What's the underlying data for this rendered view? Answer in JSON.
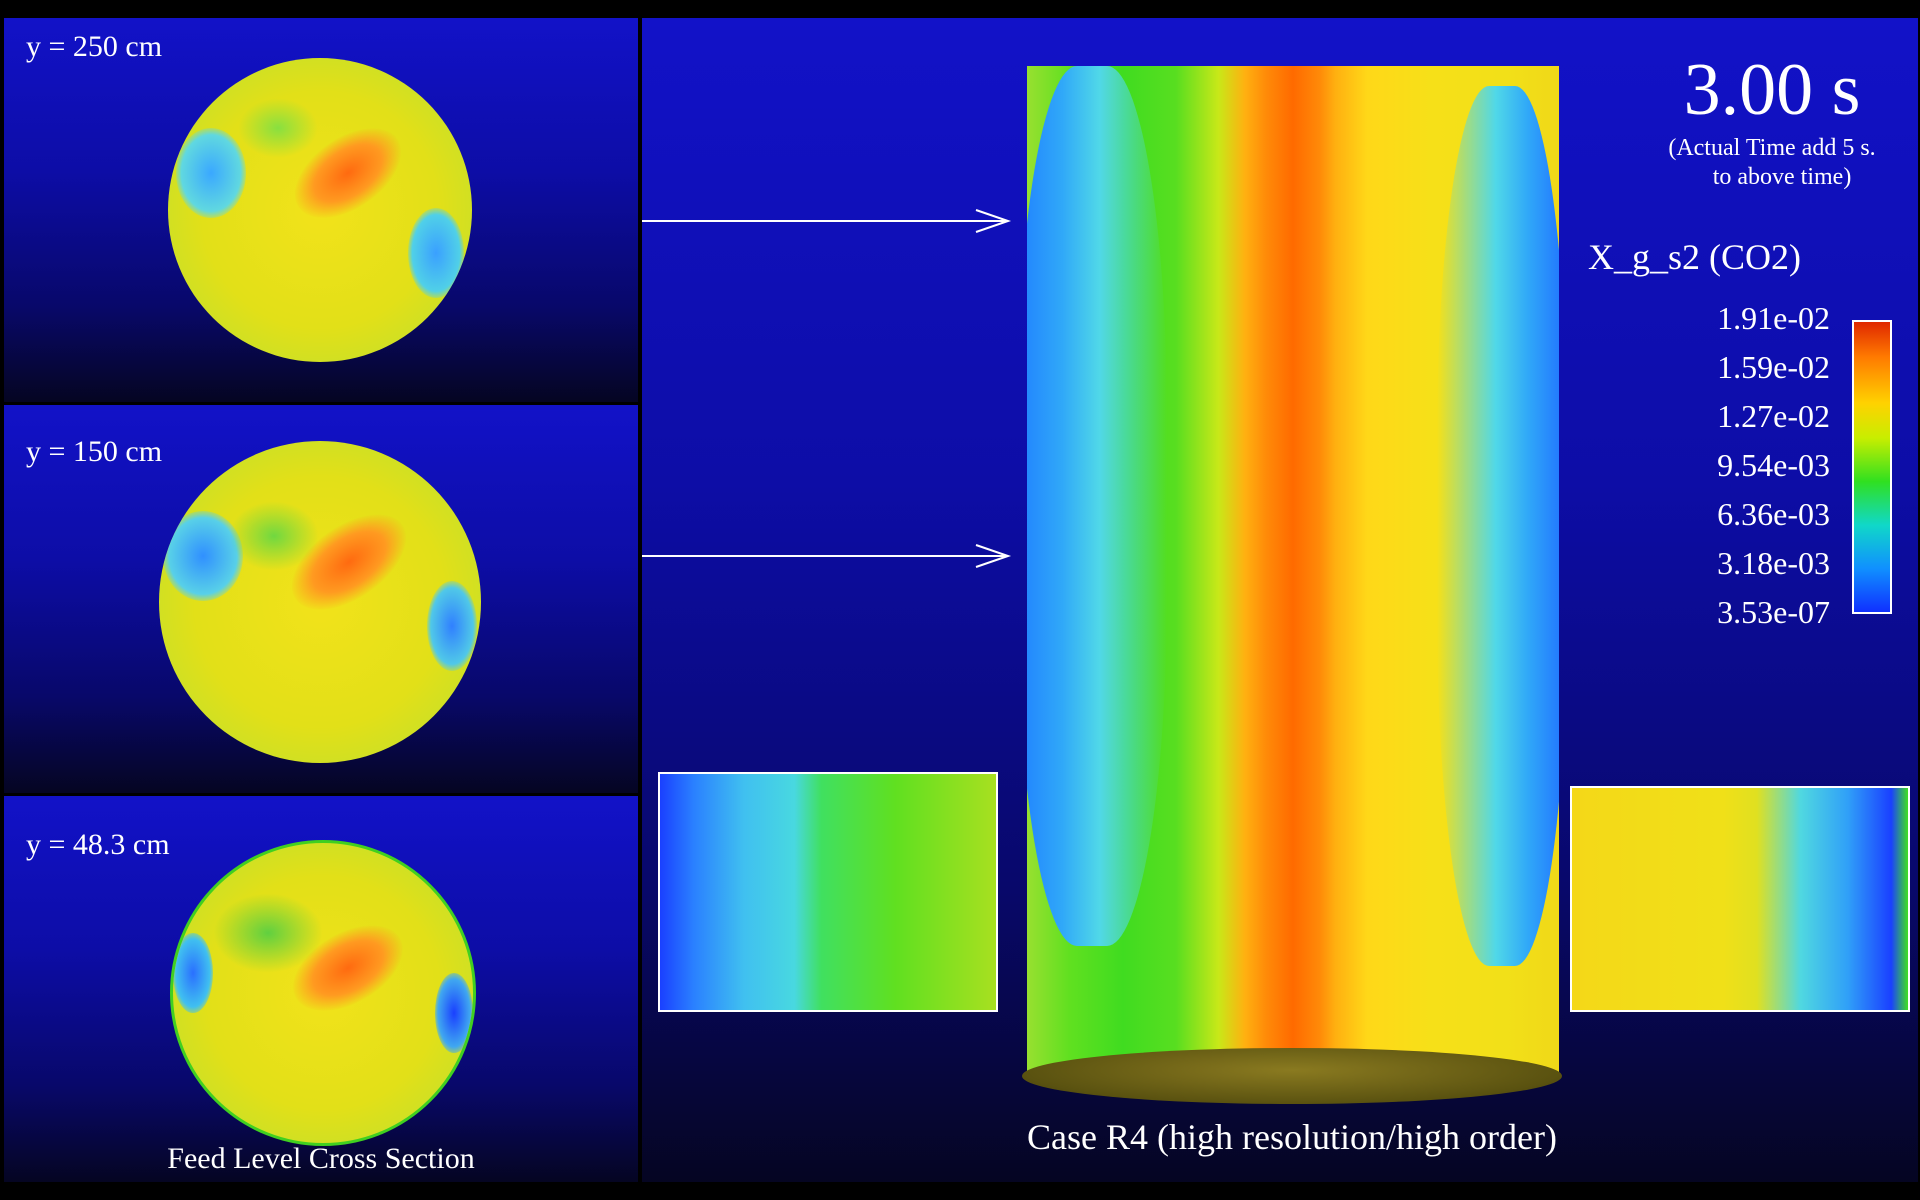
{
  "sections": [
    {
      "label": "y = 250 cm"
    },
    {
      "label": "y = 150 cm"
    },
    {
      "label": "y = 48.3 cm"
    }
  ],
  "feed_caption": "Feed Level Cross Section",
  "time": {
    "value": "3.00 s",
    "note_line1": "(Actual Time add 5 s.",
    "note_line2": "to above time)"
  },
  "colorbar": {
    "title": "X_g_s2 (CO2)",
    "ticks": [
      "1.91e-02",
      "1.59e-02",
      "1.27e-02",
      "9.54e-03",
      "6.36e-03",
      "3.18e-03",
      "3.53e-07"
    ],
    "colors": {
      "max": "#e02800",
      "mid": "#30e020",
      "min": "#1030ff"
    }
  },
  "case_caption": "Case R4 (high resolution/high order)"
}
